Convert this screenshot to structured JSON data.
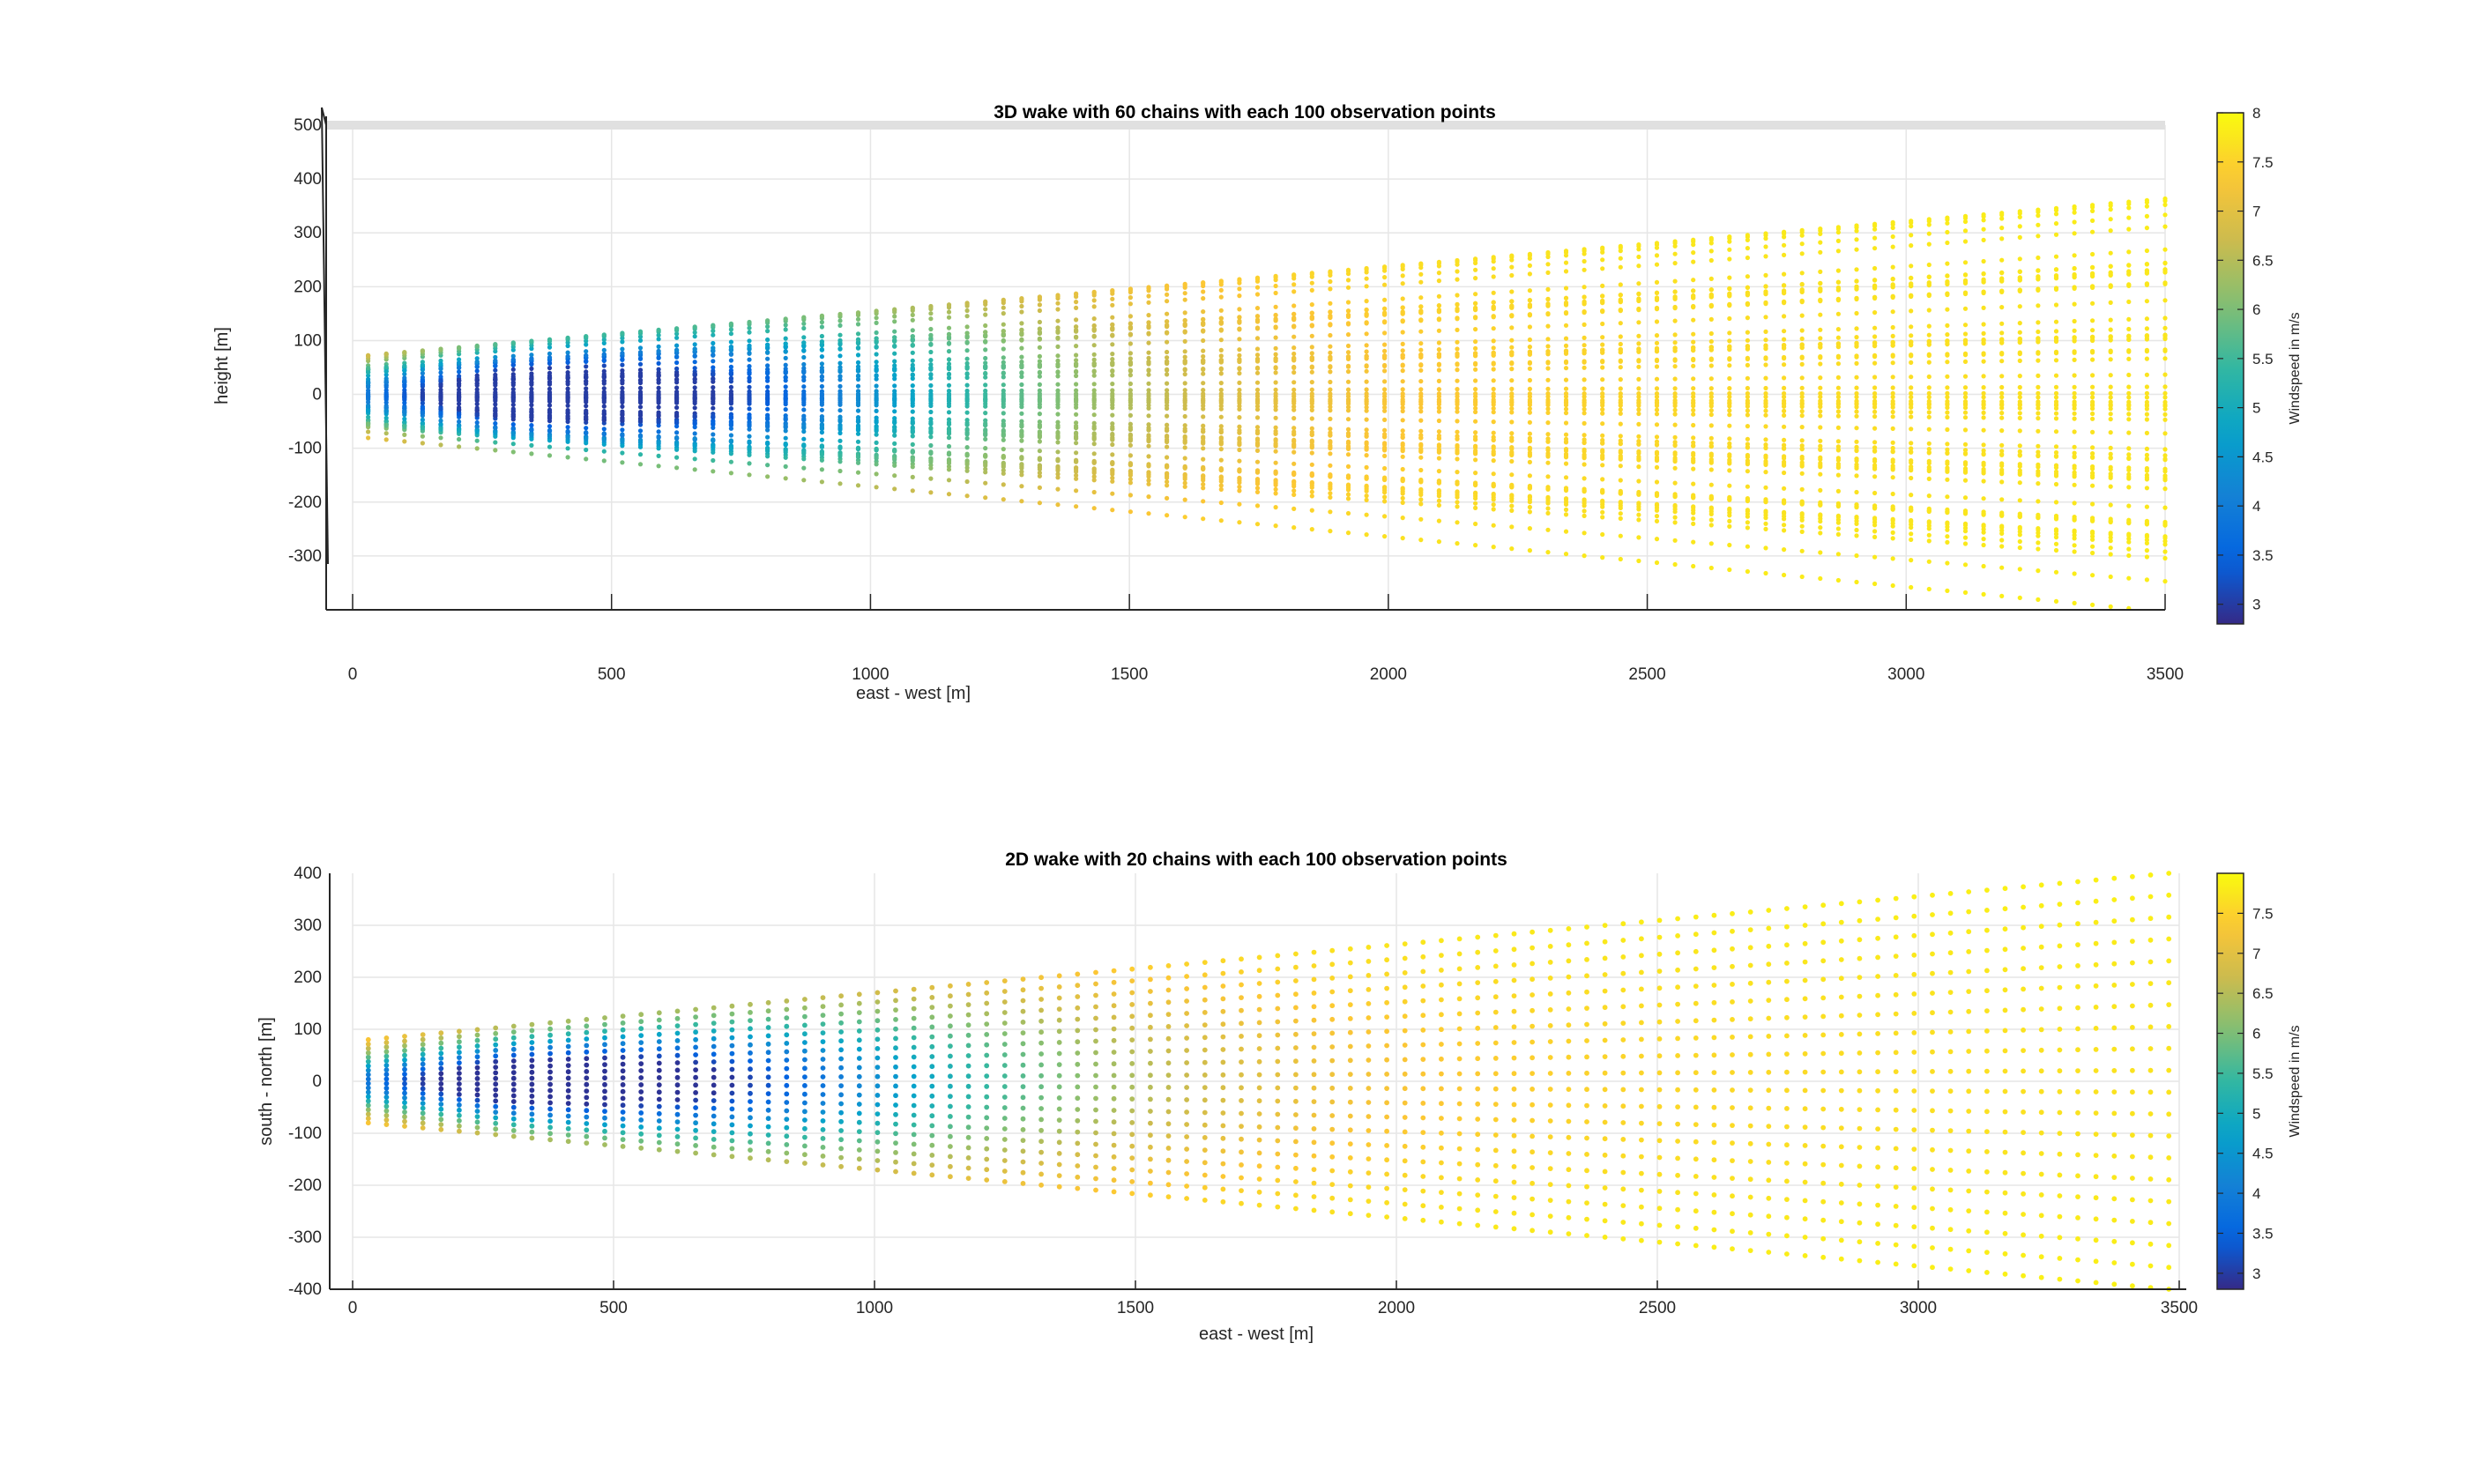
{
  "chart_data": [
    {
      "type": "scatter",
      "title": "3D wake with 60 chains with each 100 observation points",
      "xlabel": "east - west [m]",
      "ylabel": "height [m]",
      "xlim": [
        0,
        3500
      ],
      "ylim": [
        -400,
        500
      ],
      "xticks": [
        "0",
        "500",
        "1000",
        "1500",
        "2000",
        "2500",
        "3000",
        "3500"
      ],
      "yticks": [
        "500",
        "400",
        "300",
        "200",
        "100",
        "0",
        "-100",
        "-200",
        "-300"
      ],
      "grid": true,
      "colorbar": {
        "label": "Windspeed in m/s",
        "range": [
          2.8,
          8.0
        ],
        "ticks": [
          "8",
          "7.5",
          "7",
          "6.5",
          "6",
          "5.5",
          "5",
          "4.5",
          "4",
          "3.5",
          "3"
        ]
      },
      "series": [
        {
          "chains": 60,
          "points_per_chain": 100,
          "x_range": [
            30,
            3500
          ],
          "spread_at_start": 80,
          "spread_at_end": 400,
          "windspeed_core_min": 3.0,
          "windspeed_ambient": 8.0
        }
      ]
    },
    {
      "type": "scatter",
      "title": "2D wake with 20 chains with each 100 observation points",
      "xlabel": "east - west [m]",
      "ylabel": "south - north [m]",
      "xlim": [
        0,
        3500
      ],
      "ylim": [
        -400,
        400
      ],
      "xticks": [
        "0",
        "500",
        "1000",
        "1500",
        "2000",
        "2500",
        "3000",
        "3500"
      ],
      "yticks": [
        "400",
        "300",
        "200",
        "100",
        "0",
        "-100",
        "-200",
        "-300",
        "-400"
      ],
      "grid": true,
      "colorbar": {
        "label": "Windspeed in m/s",
        "range": [
          2.8,
          8.0
        ],
        "ticks": [
          "7.5",
          "7",
          "6.5",
          "6",
          "5.5",
          "5",
          "4.5",
          "4",
          "3.5",
          "3"
        ]
      },
      "series": [
        {
          "chains": 20,
          "points_per_chain": 100,
          "x_range": [
            30,
            3480
          ],
          "spread_at_start": 80,
          "spread_at_end": 400,
          "windspeed_core_min": 2.9,
          "windspeed_ambient": 8.0
        }
      ]
    }
  ]
}
